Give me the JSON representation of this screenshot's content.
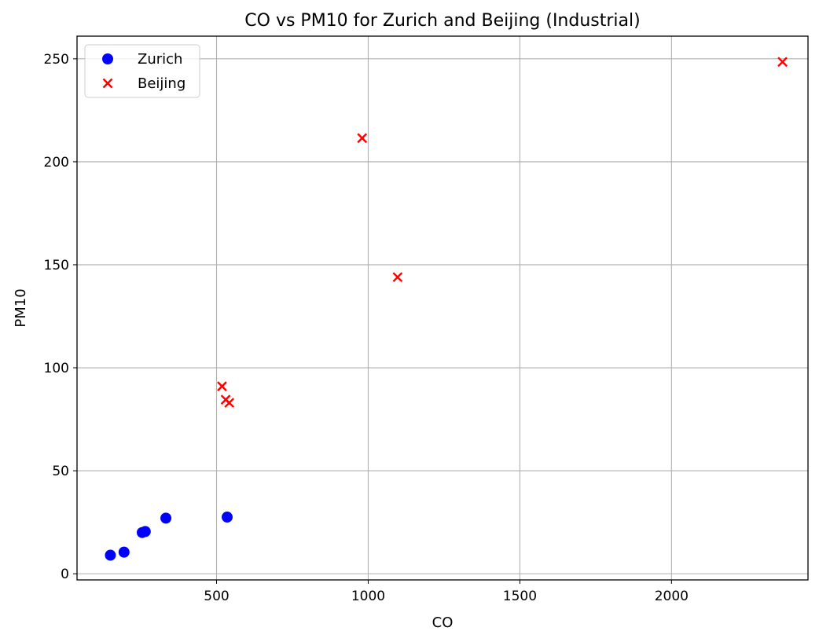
{
  "chart_data": {
    "type": "scatter",
    "title": "CO vs PM10 for Zurich and Beijing (Industrial)",
    "xlabel": "CO",
    "ylabel": "PM10",
    "xlim": [
      40,
      2450
    ],
    "ylim": [
      -3,
      261
    ],
    "xticks": [
      500,
      1000,
      1500,
      2000
    ],
    "yticks": [
      0,
      50,
      100,
      150,
      200,
      250
    ],
    "grid": true,
    "legend_position": "upper-left",
    "series": [
      {
        "name": "Zurich",
        "marker": "circle",
        "color": "#0000ff",
        "points": [
          {
            "x": 150,
            "y": 9
          },
          {
            "x": 195,
            "y": 10.5
          },
          {
            "x": 255,
            "y": 20
          },
          {
            "x": 265,
            "y": 20.5
          },
          {
            "x": 333,
            "y": 27
          },
          {
            "x": 535,
            "y": 27.5
          }
        ]
      },
      {
        "name": "Beijing",
        "marker": "x",
        "color": "#ff0000",
        "points": [
          {
            "x": 518,
            "y": 91
          },
          {
            "x": 530,
            "y": 84.5
          },
          {
            "x": 542,
            "y": 83
          },
          {
            "x": 980,
            "y": 211.5
          },
          {
            "x": 1097,
            "y": 144
          },
          {
            "x": 2366,
            "y": 248.5
          }
        ]
      }
    ]
  }
}
